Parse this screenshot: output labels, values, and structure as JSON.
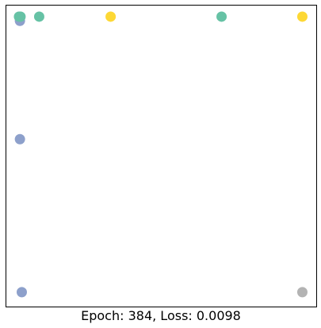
{
  "chart_data": {
    "type": "scatter",
    "title": "",
    "xlabel": "",
    "ylabel": "",
    "caption": "Epoch: 384, Loss: 0.0098",
    "xlim": [
      0,
      1
    ],
    "ylim": [
      0,
      1
    ],
    "axis_ticks": "none",
    "grid": false,
    "points": [
      {
        "x": 0.045,
        "y": 0.948,
        "color": "#8da0cb"
      },
      {
        "x": 0.047,
        "y": 0.962,
        "color": "#66c2a5"
      },
      {
        "x": 0.042,
        "y": 0.962,
        "color": "#66c2a5"
      },
      {
        "x": 0.107,
        "y": 0.962,
        "color": "#66c2a5"
      },
      {
        "x": 0.337,
        "y": 0.962,
        "color": "#fdd835"
      },
      {
        "x": 0.694,
        "y": 0.962,
        "color": "#66c2a5"
      },
      {
        "x": 0.954,
        "y": 0.962,
        "color": "#fdd835"
      },
      {
        "x": 0.045,
        "y": 0.556,
        "color": "#8da0cb"
      },
      {
        "x": 0.051,
        "y": 0.049,
        "color": "#8da0cb"
      },
      {
        "x": 0.954,
        "y": 0.049,
        "color": "#b3b3b3"
      }
    ]
  }
}
